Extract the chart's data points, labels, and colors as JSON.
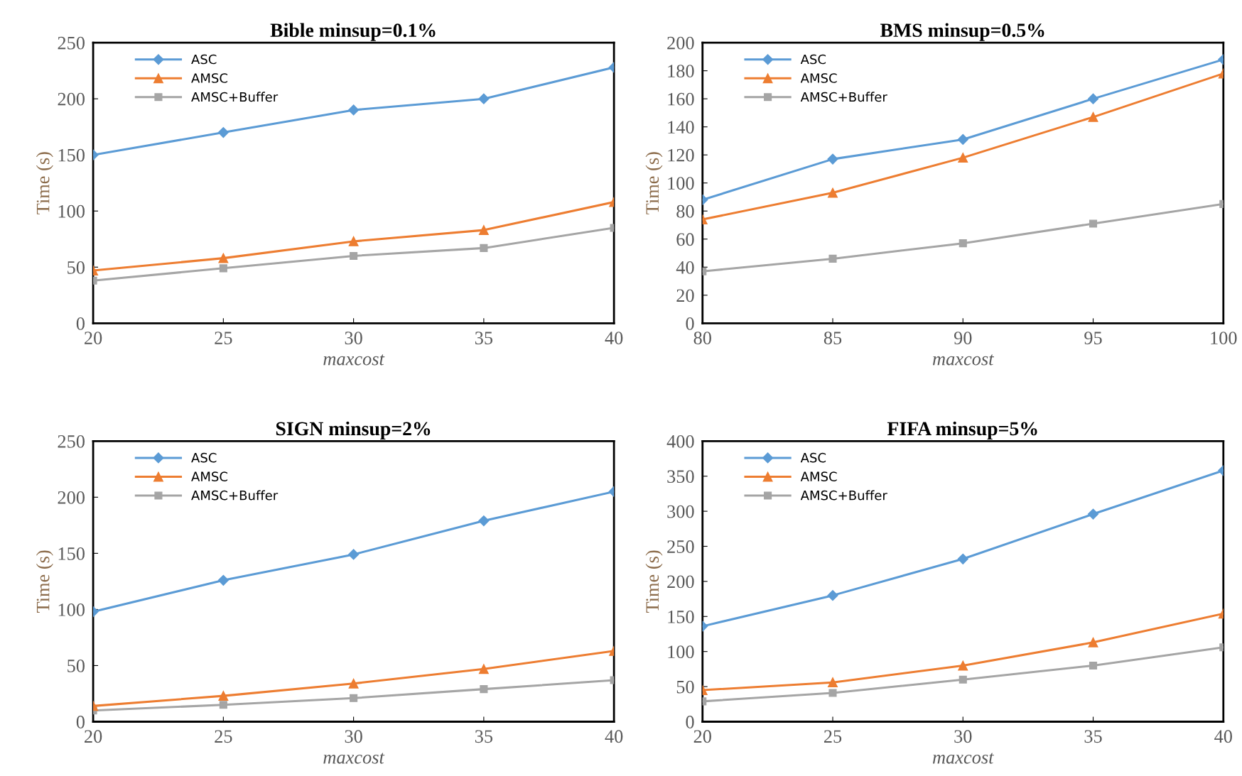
{
  "chart_data": [
    {
      "type": "line",
      "title": "Bible minsup=0.1%",
      "xlabel": "maxcost",
      "ylabel": "Time (s)",
      "x": [
        20,
        25,
        30,
        35,
        40
      ],
      "xlim": [
        20,
        40
      ],
      "xticks": [
        20,
        25,
        30,
        35,
        40
      ],
      "ylim": [
        0,
        250
      ],
      "yticks": [
        0,
        50,
        100,
        150,
        200,
        250
      ],
      "grid": false,
      "legend": "top left",
      "series": [
        {
          "name": "ASC",
          "color": "#5b9bd5",
          "marker": "diamond",
          "values": [
            150,
            170,
            190,
            200,
            228
          ]
        },
        {
          "name": "AMSC",
          "color": "#ed7d31",
          "marker": "triangle",
          "values": [
            47,
            58,
            73,
            83,
            108
          ]
        },
        {
          "name": "AMSC+Buffer",
          "color": "#a5a5a5",
          "marker": "square",
          "values": [
            38,
            49,
            60,
            67,
            85
          ]
        }
      ]
    },
    {
      "type": "line",
      "title": "BMS minsup=0.5%",
      "xlabel": "maxcost",
      "ylabel": "Time (s)",
      "x": [
        80,
        85,
        90,
        95,
        100
      ],
      "xlim": [
        80,
        100
      ],
      "xticks": [
        80,
        85,
        90,
        95,
        100
      ],
      "ylim": [
        0,
        200
      ],
      "yticks": [
        0,
        20,
        40,
        60,
        80,
        100,
        120,
        140,
        160,
        180,
        200
      ],
      "grid": false,
      "legend": "top left",
      "series": [
        {
          "name": "ASC",
          "color": "#5b9bd5",
          "marker": "diamond",
          "values": [
            88,
            117,
            131,
            160,
            188
          ]
        },
        {
          "name": "AMSC",
          "color": "#ed7d31",
          "marker": "triangle",
          "values": [
            74,
            93,
            118,
            147,
            178
          ]
        },
        {
          "name": "AMSC+Buffer",
          "color": "#a5a5a5",
          "marker": "square",
          "values": [
            37,
            46,
            57,
            71,
            85
          ]
        }
      ]
    },
    {
      "type": "line",
      "title": "SIGN minsup=2%",
      "xlabel": "maxcost",
      "ylabel": "Time (s)",
      "x": [
        20,
        25,
        30,
        35,
        40
      ],
      "xlim": [
        20,
        40
      ],
      "xticks": [
        20,
        25,
        30,
        35,
        40
      ],
      "ylim": [
        0,
        250
      ],
      "yticks": [
        0,
        50,
        100,
        150,
        200,
        250
      ],
      "grid": false,
      "legend": "top left",
      "series": [
        {
          "name": "ASC",
          "color": "#5b9bd5",
          "marker": "diamond",
          "values": [
            98,
            126,
            149,
            179,
            205
          ]
        },
        {
          "name": "AMSC",
          "color": "#ed7d31",
          "marker": "triangle",
          "values": [
            14,
            23,
            34,
            47,
            63
          ]
        },
        {
          "name": "AMSC+Buffer",
          "color": "#a5a5a5",
          "marker": "square",
          "values": [
            10,
            15,
            21,
            29,
            37
          ]
        }
      ]
    },
    {
      "type": "line",
      "title": "FIFA minsup=5%",
      "xlabel": "maxcost",
      "ylabel": "Time (s)",
      "x": [
        20,
        25,
        30,
        35,
        40
      ],
      "xlim": [
        20,
        40
      ],
      "xticks": [
        20,
        25,
        30,
        35,
        40
      ],
      "ylim": [
        0,
        400
      ],
      "yticks": [
        0,
        50,
        100,
        150,
        200,
        250,
        300,
        350,
        400
      ],
      "grid": false,
      "legend": "top left",
      "series": [
        {
          "name": "ASC",
          "color": "#5b9bd5",
          "marker": "diamond",
          "values": [
            136,
            180,
            232,
            296,
            358
          ]
        },
        {
          "name": "AMSC",
          "color": "#ed7d31",
          "marker": "triangle",
          "values": [
            45,
            56,
            80,
            113,
            154
          ]
        },
        {
          "name": "AMSC+Buffer",
          "color": "#a5a5a5",
          "marker": "square",
          "values": [
            29,
            41,
            60,
            80,
            106
          ]
        }
      ]
    }
  ]
}
